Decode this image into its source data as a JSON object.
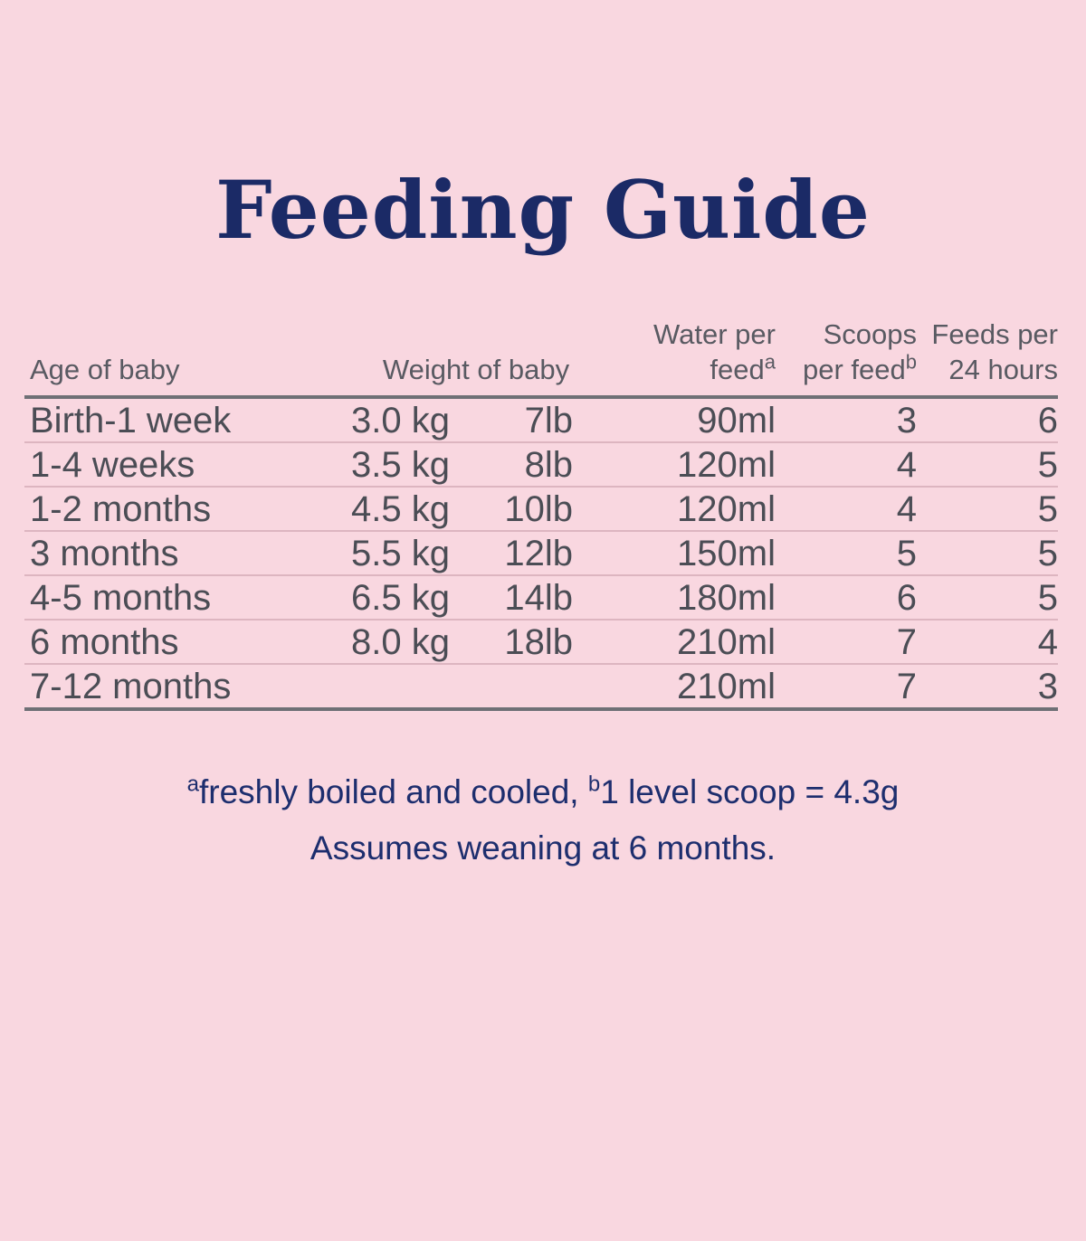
{
  "title": "Feeding Guide",
  "colors": {
    "background": "#f9d7e0",
    "title": "#1b2a66",
    "table_text": "#4b4d55",
    "header_text": "#595a62",
    "rule_heavy": "#6f7076",
    "rule_light": "#ddb5c0",
    "footnote": "#1d2e6e"
  },
  "chart_data": {
    "type": "table",
    "title": "Feeding Guide",
    "headers": {
      "age": "Age of baby",
      "weight": "Weight of baby",
      "water_line1": "Water per",
      "water_line2": "feed",
      "water_footnote_mark": "a",
      "scoops_line1": "Scoops",
      "scoops_line2": "per feed",
      "scoops_footnote_mark": "b",
      "feeds_line1": "Feeds per",
      "feeds_line2": "24 hours"
    },
    "columns": [
      "Age of baby",
      "Weight of baby (kg)",
      "Weight of baby (lb)",
      "Water per feed",
      "Scoops per feed",
      "Feeds per 24 hours"
    ],
    "rows": [
      {
        "age": "Birth-1 week",
        "kg": "3.0 kg",
        "lb": "7lb",
        "water": "90ml",
        "scoops": "3",
        "feeds": "6"
      },
      {
        "age": "1-4 weeks",
        "kg": "3.5 kg",
        "lb": "8lb",
        "water": "120ml",
        "scoops": "4",
        "feeds": "5"
      },
      {
        "age": "1-2 months",
        "kg": "4.5 kg",
        "lb": "10lb",
        "water": "120ml",
        "scoops": "4",
        "feeds": "5"
      },
      {
        "age": "3 months",
        "kg": "5.5 kg",
        "lb": "12lb",
        "water": "150ml",
        "scoops": "5",
        "feeds": "5"
      },
      {
        "age": "4-5 months",
        "kg": "6.5 kg",
        "lb": "14lb",
        "water": "180ml",
        "scoops": "6",
        "feeds": "5"
      },
      {
        "age": "6 months",
        "kg": "8.0 kg",
        "lb": "18lb",
        "water": "210ml",
        "scoops": "7",
        "feeds": "4"
      },
      {
        "age": "7-12 months",
        "kg": "",
        "lb": "",
        "water": "210ml",
        "scoops": "7",
        "feeds": "3"
      }
    ],
    "footnotes": {
      "mark_a": "a",
      "note_a": "freshly boiled and cooled, ",
      "mark_b": "b",
      "note_b": "1 level scoop = 4.3g",
      "line2": "Assumes weaning at 6 months."
    }
  }
}
